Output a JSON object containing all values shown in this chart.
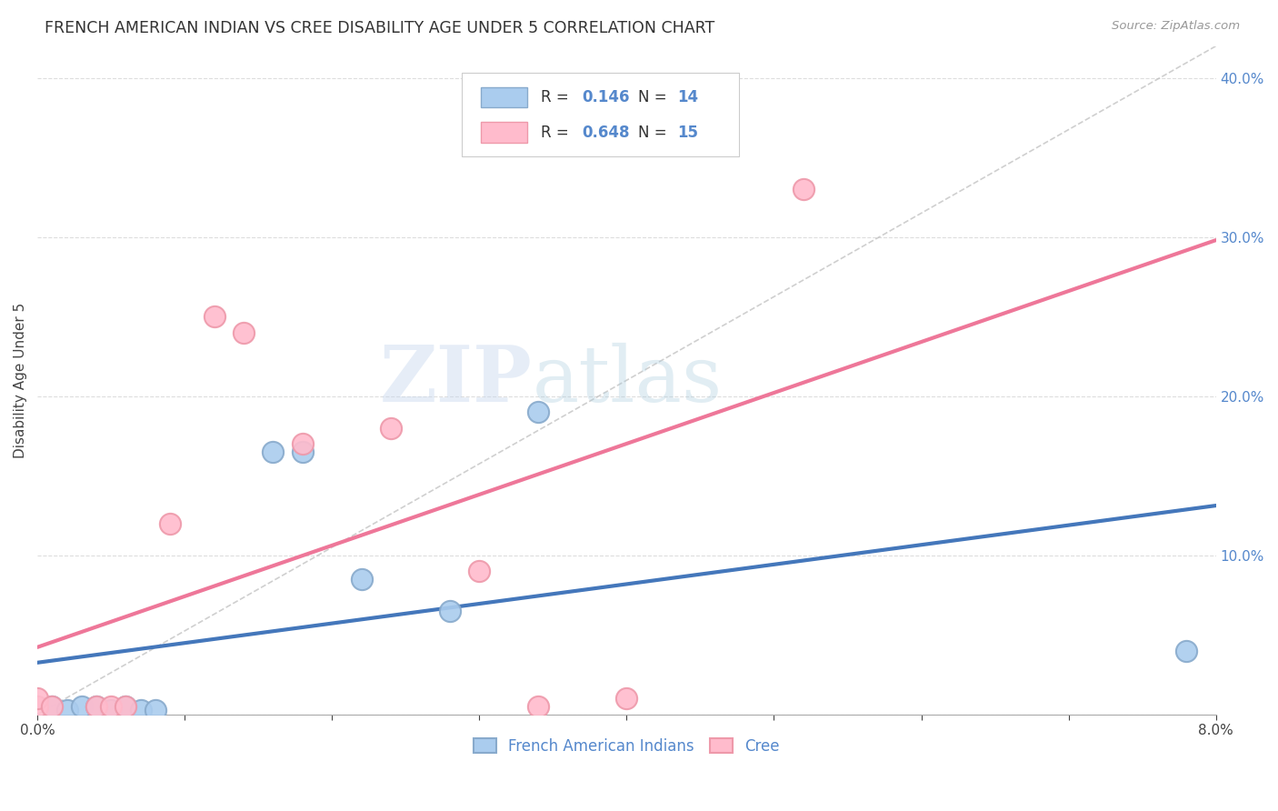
{
  "title": "FRENCH AMERICAN INDIAN VS CREE DISABILITY AGE UNDER 5 CORRELATION CHART",
  "source": "Source: ZipAtlas.com",
  "xlabel": "",
  "ylabel": "Disability Age Under 5",
  "xlim": [
    0.0,
    0.08
  ],
  "ylim": [
    0.0,
    0.42
  ],
  "xticks": [
    0.0,
    0.01,
    0.02,
    0.03,
    0.04,
    0.05,
    0.06,
    0.07,
    0.08
  ],
  "yticks": [
    0.0,
    0.1,
    0.2,
    0.3,
    0.4
  ],
  "blue_points": [
    [
      0.001,
      0.005
    ],
    [
      0.002,
      0.003
    ],
    [
      0.003,
      0.005
    ],
    [
      0.004,
      0.005
    ],
    [
      0.005,
      0.003
    ],
    [
      0.006,
      0.005
    ],
    [
      0.007,
      0.003
    ],
    [
      0.008,
      0.003
    ],
    [
      0.016,
      0.165
    ],
    [
      0.018,
      0.165
    ],
    [
      0.022,
      0.085
    ],
    [
      0.028,
      0.065
    ],
    [
      0.034,
      0.19
    ],
    [
      0.078,
      0.04
    ]
  ],
  "pink_points": [
    [
      0.0,
      0.005
    ],
    [
      0.0,
      0.01
    ],
    [
      0.001,
      0.005
    ],
    [
      0.004,
      0.005
    ],
    [
      0.005,
      0.005
    ],
    [
      0.006,
      0.005
    ],
    [
      0.009,
      0.12
    ],
    [
      0.012,
      0.25
    ],
    [
      0.014,
      0.24
    ],
    [
      0.018,
      0.17
    ],
    [
      0.024,
      0.18
    ],
    [
      0.03,
      0.09
    ],
    [
      0.034,
      0.005
    ],
    [
      0.04,
      0.01
    ],
    [
      0.052,
      0.33
    ]
  ],
  "blue_R": 0.146,
  "blue_N": 14,
  "pink_R": 0.648,
  "pink_N": 15,
  "blue_line_color": "#4477BB",
  "pink_line_color": "#EE7799",
  "dot_blue_facecolor": "#AACCEE",
  "dot_blue_edgecolor": "#88AACC",
  "dot_pink_facecolor": "#FFBBCC",
  "dot_pink_edgecolor": "#EE99AA",
  "diagonal_color": "#BBBBBB",
  "watermark_zip": "ZIP",
  "watermark_atlas": "atlas",
  "background_color": "#FFFFFF",
  "grid_color": "#DDDDDD"
}
